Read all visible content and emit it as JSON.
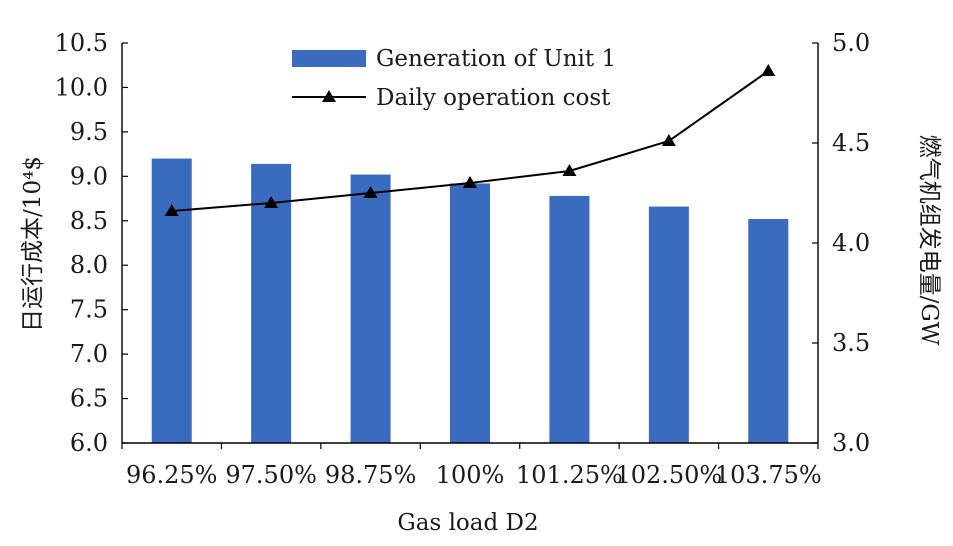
{
  "chart_data": {
    "type": "bar+line",
    "xlabel": "Gas load D2",
    "ylabel_left": "日运行成本/10⁴$",
    "ylabel_right": "燃气机组发电量/GW",
    "categories": [
      "96.25%",
      "97.50%",
      "98.75%",
      "100%",
      "101.25%",
      "102.50%",
      "103.75%"
    ],
    "left_axis": {
      "min": 6.0,
      "max": 10.5,
      "step": 0.5,
      "ticks": [
        "6.0",
        "6.5",
        "7.0",
        "7.5",
        "8.0",
        "8.5",
        "9.0",
        "9.5",
        "10.0",
        "10.5"
      ]
    },
    "right_axis": {
      "min": 3.0,
      "max": 5.0,
      "step": 0.5,
      "ticks": [
        "3.0",
        "3.5",
        "4.0",
        "4.5",
        "5.0"
      ]
    },
    "series": [
      {
        "name": "Generation of Unit 1",
        "type": "bar",
        "axis": "left",
        "color": "#3a6bbf",
        "values": [
          9.2,
          9.14,
          9.02,
          8.92,
          8.78,
          8.66,
          8.52
        ]
      },
      {
        "name": "Daily operation cost",
        "type": "line",
        "axis": "right",
        "color": "#000000",
        "marker": "triangle",
        "values": [
          4.16,
          4.2,
          4.25,
          4.3,
          4.36,
          4.51,
          4.86
        ]
      }
    ],
    "legend_position": "top-center",
    "grid": false
  }
}
